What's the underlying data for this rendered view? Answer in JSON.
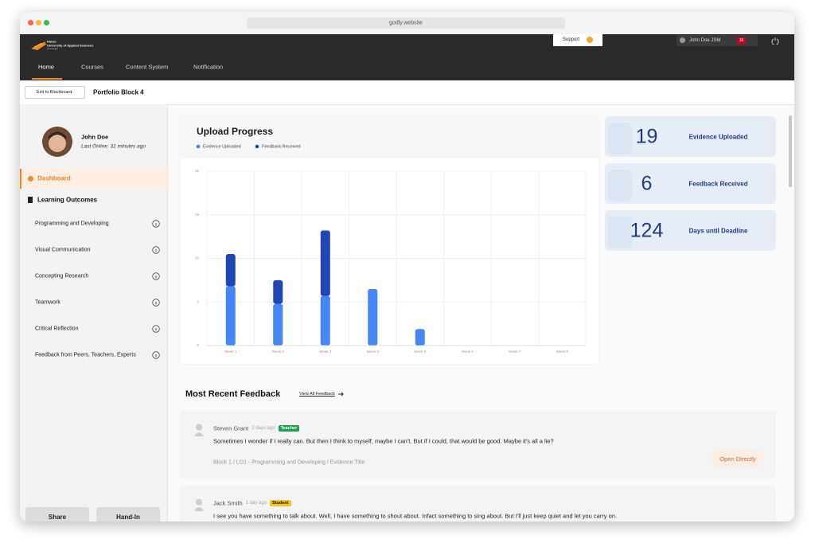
{
  "browser": {
    "url": "godly.website"
  },
  "header": {
    "logo": [
      "Hanze",
      "University of Applied Sciences",
      "Groningen"
    ],
    "nav": [
      "Home",
      "Courses",
      "Content System",
      "Notification"
    ],
    "support": "Support",
    "user": "John Doe JSM",
    "badge": "16"
  },
  "subheader": {
    "back": "Exit to Blackboard",
    "title": "Portfolio Block 4"
  },
  "sidebar": {
    "name": "John Doe",
    "last_online": "Last Online: 31 minutes ago",
    "dashboard": "Dashboard",
    "outcomes_title": "Learning Outcomes",
    "outcomes": [
      "Programming and Developing",
      "Visual Communication",
      "Concepting Research",
      "Teamwork",
      "Critical Reflection",
      "Feedback from Peers, Teachers, Experts"
    ],
    "buttons": [
      "Share",
      "Hand-In"
    ]
  },
  "chart_data": {
    "type": "bar",
    "stacked": true,
    "title": "Upload Progress",
    "categories": [
      "Week 1",
      "Week 2",
      "Week 3",
      "Week 4",
      "Week 5",
      "Week 6",
      "Week 7",
      "Week 8"
    ],
    "series": [
      {
        "name": "Evidence Uploaded",
        "color": "#4386f4",
        "values": [
          6.8,
          4.8,
          5.7,
          6.5,
          1.9,
          0,
          0,
          0
        ]
      },
      {
        "name": "Feedback Received",
        "color": "#1f46b5",
        "values": [
          3.7,
          2.7,
          7.5,
          0,
          0,
          0,
          0,
          0
        ]
      }
    ],
    "ylim": [
      0,
      20
    ],
    "yticks": [
      0,
      5,
      10,
      15,
      20
    ],
    "grid": true
  },
  "stats": [
    {
      "value": 19,
      "label": "Evidence Uploaded"
    },
    {
      "value": 6,
      "label": "Feedback Received"
    },
    {
      "value": 124,
      "label": "Days until Deadline"
    }
  ],
  "feedback": {
    "title": "Most Recent Feedback",
    "link": "View All Feedback",
    "items": [
      {
        "name": "Steven Grant",
        "time": "2 days ago",
        "role": "Teacher",
        "text": "Sometimes I wonder if I really can. But then I think to myself, maybe I can't. But if I could, that would be good. Maybe it's all a lie?",
        "breadcrumb": "Block 1  /  LO1 - Programming and Developing  /  Evidence Title",
        "action": "Open Directly"
      },
      {
        "name": "Jack Smith",
        "time": "1 day ago",
        "role": "Student",
        "text": "I see you have something to talk about. Well, I have something to shout about. Infact something to sing about. But I'll just keep quiet and let you carry on."
      }
    ]
  }
}
